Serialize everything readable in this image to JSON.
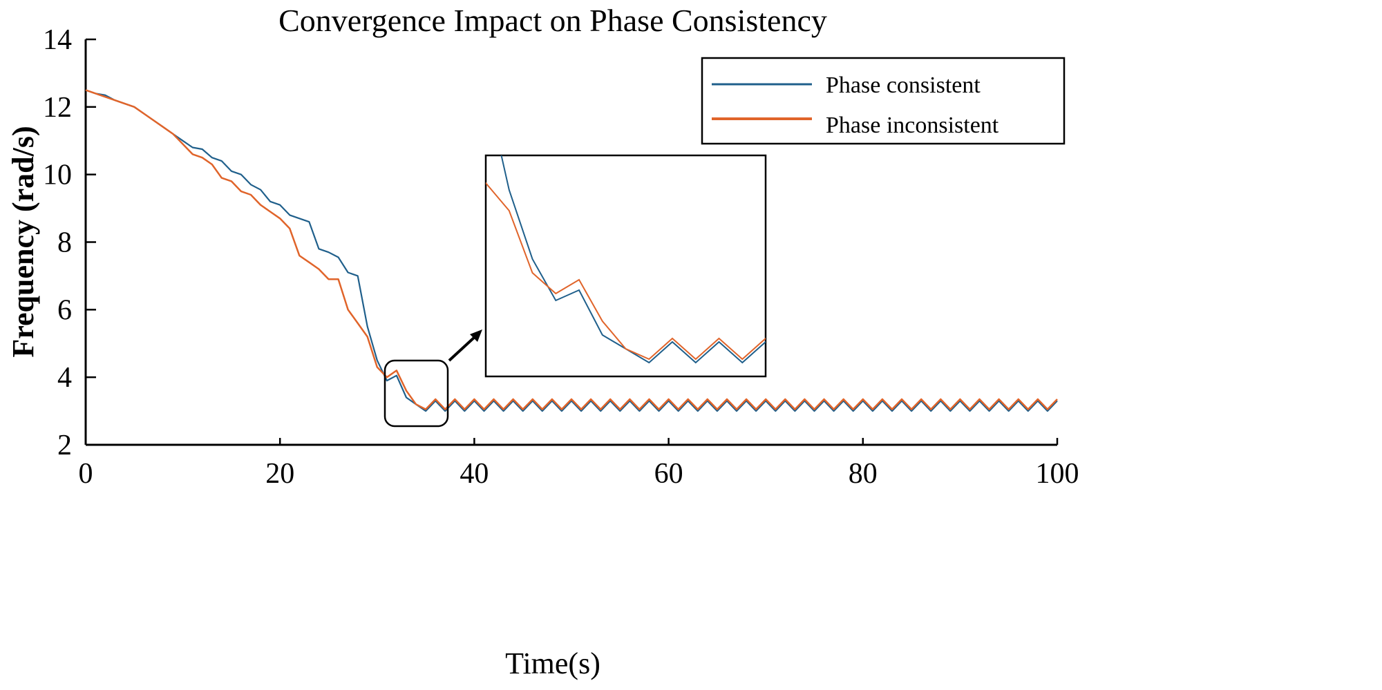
{
  "chart_data": {
    "type": "line",
    "title": "Convergence Impact on Phase Consistency",
    "xlabel": "Time(s)",
    "ylabel": "Frequency (rad/s)",
    "xlim": [
      0,
      100
    ],
    "ylim": [
      2,
      14
    ],
    "xticks": [
      0,
      20,
      40,
      60,
      80,
      100
    ],
    "yticks": [
      2,
      4,
      6,
      8,
      10,
      12,
      14
    ],
    "grid": false,
    "legend_position": "top-right",
    "inset": {
      "xlim": [
        28,
        40
      ],
      "ylim": [
        2.8,
        6.0
      ],
      "source": "zoom of highlighted region near t=32-37 s"
    },
    "series": [
      {
        "name": "Phase consistent",
        "color": "#1f5f8b",
        "x": [
          0,
          1,
          2,
          3,
          4,
          5,
          6,
          7,
          8,
          9,
          10,
          11,
          12,
          13,
          14,
          15,
          16,
          17,
          18,
          19,
          20,
          21,
          22,
          23,
          24,
          25,
          26,
          27,
          28,
          29,
          30,
          31,
          32,
          33,
          34,
          35
        ],
        "y": [
          12.5,
          12.4,
          12.35,
          12.2,
          12.1,
          12.0,
          11.8,
          11.6,
          11.4,
          11.2,
          11.0,
          10.8,
          10.75,
          10.5,
          10.4,
          10.1,
          10.0,
          9.7,
          9.55,
          9.2,
          9.1,
          8.8,
          8.7,
          8.6,
          7.8,
          7.7,
          7.55,
          7.1,
          7.0,
          5.5,
          4.5,
          3.9,
          4.05,
          3.4,
          3.2,
          3.0
        ],
        "steady_state": {
          "from": 36,
          "to": 100,
          "period": 2,
          "min": 3.0,
          "max": 3.3
        }
      },
      {
        "name": "Phase inconsistent",
        "color": "#e0642a",
        "x": [
          0,
          1,
          2,
          3,
          4,
          5,
          6,
          7,
          8,
          9,
          10,
          11,
          12,
          13,
          14,
          15,
          16,
          17,
          18,
          19,
          20,
          21,
          22,
          23,
          24,
          25,
          26,
          27,
          28,
          29,
          30,
          31,
          32,
          33,
          34,
          35
        ],
        "y": [
          12.5,
          12.4,
          12.3,
          12.2,
          12.1,
          12.0,
          11.8,
          11.6,
          11.4,
          11.2,
          10.9,
          10.6,
          10.5,
          10.3,
          9.9,
          9.8,
          9.5,
          9.4,
          9.1,
          8.9,
          8.7,
          8.4,
          7.6,
          7.4,
          7.2,
          6.9,
          6.9,
          6.0,
          5.6,
          5.2,
          4.3,
          4.0,
          4.2,
          3.6,
          3.2,
          3.05
        ],
        "steady_state": {
          "from": 36,
          "to": 100,
          "period": 2,
          "min": 3.05,
          "max": 3.35
        }
      }
    ]
  }
}
